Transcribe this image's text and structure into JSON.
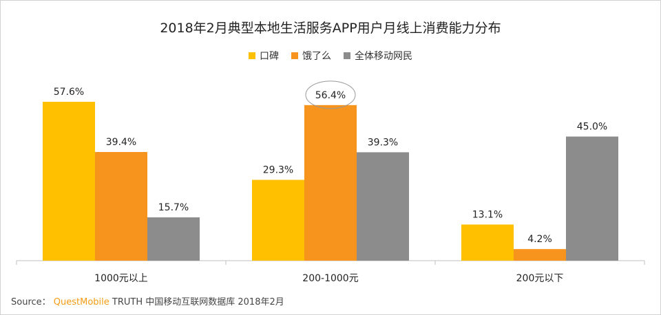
{
  "chart_data": {
    "type": "bar",
    "title": "2018年2月典型本地生活服务APP用户月线上消费能力分布",
    "categories": [
      "1000元以上",
      "200-1000元",
      "200元以下"
    ],
    "series": [
      {
        "name": "口碑",
        "color": "#ffc000",
        "values": [
          57.6,
          29.3,
          13.1
        ]
      },
      {
        "name": "饿了么",
        "color": "#f7941d",
        "values": [
          39.4,
          56.4,
          4.2
        ]
      },
      {
        "name": "全体移动网民",
        "color": "#8c8c8c",
        "values": [
          15.7,
          39.3,
          45.0
        ]
      }
    ],
    "value_suffix": "%",
    "ylim": [
      0,
      60
    ],
    "grid": false,
    "legend_position": "top-center",
    "highlight": {
      "series": 1,
      "category": 1,
      "style": "circle"
    }
  },
  "source": {
    "label": "Source：",
    "brand": "QuestMobile",
    "text": "TRUTH 中国移动互联网数据库 2018年2月"
  }
}
